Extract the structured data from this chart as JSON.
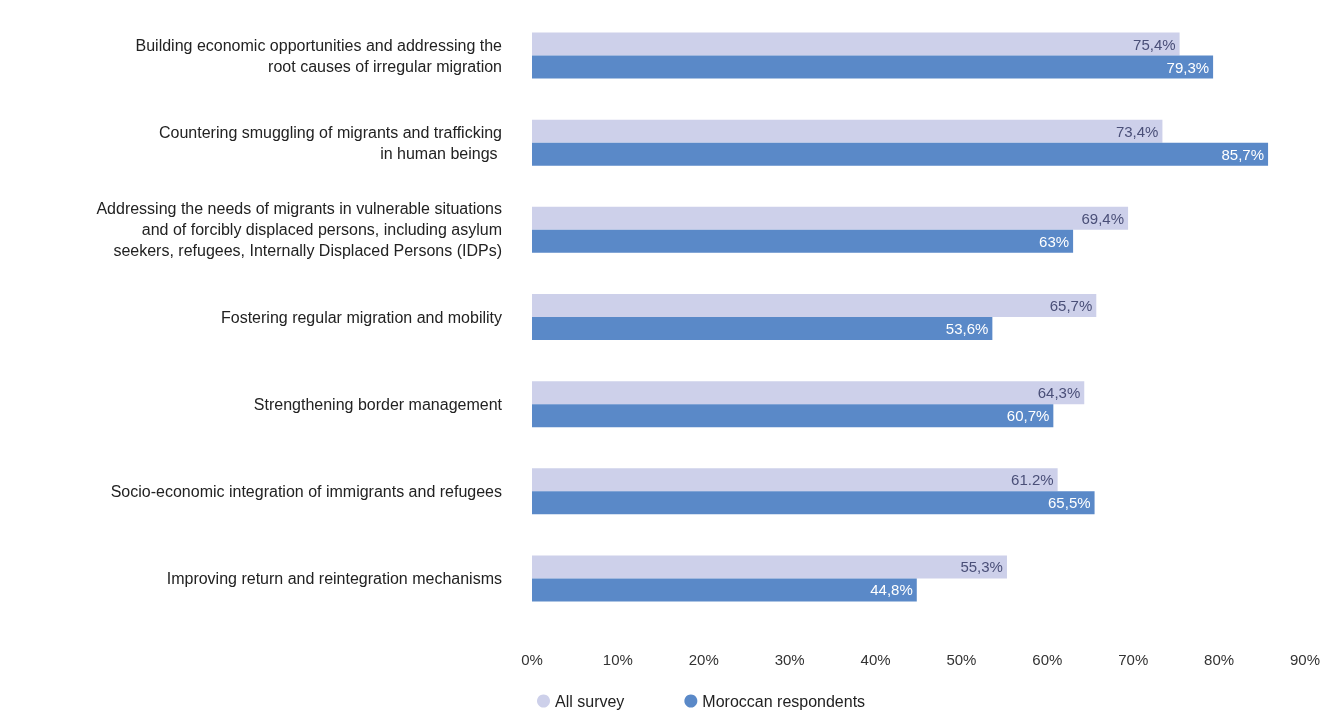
{
  "chart_data": {
    "type": "bar",
    "orientation": "horizontal",
    "categories": [
      "Building economic opportunities and addressing the\nroot causes of irregular migration",
      "Countering smuggling of migrants and trafficking\nin human beings ",
      "Addressing the needs of migrants in vulnerable situations\nand of forcibly displaced persons, including asylum\nseekers, refugees, Internally Displaced Persons (IDPs)",
      "Fostering regular migration and mobility",
      "Strengthening border management",
      "Socio-economic integration of immigrants and refugees",
      "Improving return and reintegration mechanisms"
    ],
    "series": [
      {
        "name": "All survey",
        "color": "#cdd0ea",
        "values": [
          75.4,
          73.4,
          69.4,
          65.7,
          64.3,
          61.2,
          55.3
        ],
        "value_labels": [
          "75,4%",
          "73,4%",
          "69,4%",
          "65,7%",
          "64,3%",
          "61.2%",
          "55,3%"
        ]
      },
      {
        "name": "Moroccan respondents",
        "color": "#5a89c8",
        "values": [
          79.3,
          85.7,
          63,
          53.6,
          60.7,
          65.5,
          44.8
        ],
        "value_labels": [
          "79,3%",
          "85,7%",
          "63%",
          "53,6%",
          "60,7%",
          "65,5%",
          "44,8%"
        ]
      }
    ],
    "xlim": [
      0,
      90
    ],
    "xticks": [
      {
        "value": 0,
        "label": "0%"
      },
      {
        "value": 10,
        "label": "10%"
      },
      {
        "value": 20,
        "label": "20%"
      },
      {
        "value": 30,
        "label": "30%"
      },
      {
        "value": 40,
        "label": "40%"
      },
      {
        "value": 50,
        "label": "50%"
      },
      {
        "value": 60,
        "label": "60%"
      },
      {
        "value": 70,
        "label": "70%"
      },
      {
        "value": 80,
        "label": "80%"
      },
      {
        "value": 90,
        "label": "90%"
      }
    ],
    "grid": false,
    "legend": "bottom left"
  }
}
